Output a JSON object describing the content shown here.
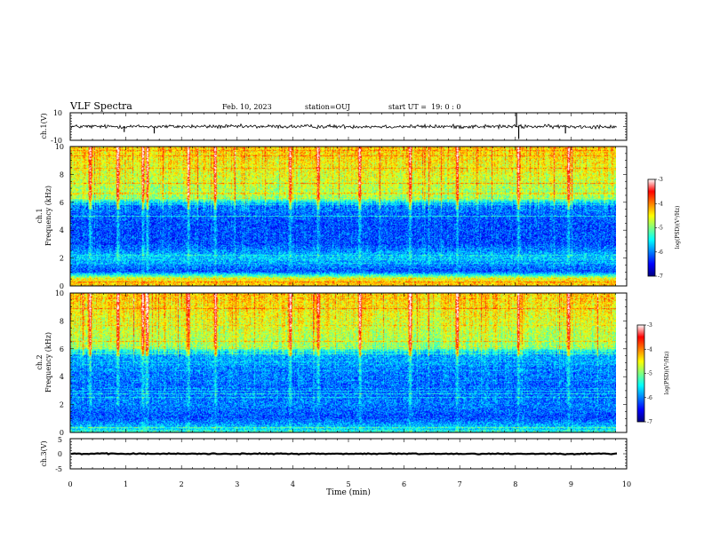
{
  "header": {
    "title": "VLF Spectra",
    "date": "Feb. 10, 2023",
    "station": "station=OUJ",
    "start": "start UT =  19: 0 : 0"
  },
  "chart_data": [
    {
      "id": "ch1-waveform",
      "type": "line",
      "ylabel": "ch.1(V)",
      "ylim": [
        -10,
        10
      ],
      "yticks": [
        "10",
        "-10"
      ],
      "xlim": [
        0,
        10
      ],
      "baseline": 0,
      "noise_amplitude": 1.2,
      "spikes": [
        {
          "t": 0.97,
          "v": -4
        },
        {
          "t": 1.51,
          "v": -5
        },
        {
          "t": 8.02,
          "v": 10
        },
        {
          "t": 8.06,
          "v": -9
        },
        {
          "t": 8.9,
          "v": -5
        }
      ]
    },
    {
      "id": "ch1-spectrogram",
      "type": "heatmap",
      "ylabel": "ch.1\nFrequency (kHz)",
      "ylabel_lines": [
        "ch.1",
        "Frequency (kHz)"
      ],
      "ylim": [
        0,
        10
      ],
      "yticks": [
        "0",
        "2",
        "4",
        "6",
        "8",
        "10"
      ],
      "xlim": [
        0,
        10
      ],
      "data_extent_min": 9.83,
      "colorbar": {
        "label": "log(PSD)(V²/Hz)",
        "range": [
          -7,
          -3
        ],
        "ticks": [
          "-3",
          "-4",
          "-5",
          "-6",
          "-7"
        ],
        "colormap": [
          "#000080",
          "#0000ff",
          "#0080ff",
          "#00ffff",
          "#80ff80",
          "#ffff00",
          "#ff8000",
          "#ff0000",
          "#ffffff"
        ]
      },
      "profile_kHz_log": [
        [
          0.2,
          -4.3
        ],
        [
          0.5,
          -4.6
        ],
        [
          1.0,
          -6.2
        ],
        [
          2.0,
          -5.7
        ],
        [
          3.0,
          -6.2
        ],
        [
          4.5,
          -6.2
        ],
        [
          5.8,
          -6.0
        ],
        [
          6.3,
          -4.9
        ],
        [
          8.0,
          -4.6
        ],
        [
          10.0,
          -4.3
        ]
      ],
      "sferics_min": [
        0.35,
        0.85,
        1.3,
        1.38,
        2.12,
        2.6,
        3.95,
        4.45,
        5.2,
        6.1,
        6.95,
        8.05,
        8.95
      ]
    },
    {
      "id": "ch2-spectrogram",
      "type": "heatmap",
      "ylabel": "ch.2\nFrequency (kHz)",
      "ylabel_lines": [
        "ch.2",
        "Frequency (kHz)"
      ],
      "ylim": [
        0,
        10
      ],
      "yticks": [
        "0",
        "2",
        "4",
        "6",
        "8",
        "10"
      ],
      "xlim": [
        0,
        10
      ],
      "data_extent_min": 9.83,
      "colorbar": {
        "label": "log(PSD)(V²/Hz)",
        "range": [
          -7,
          -3
        ],
        "ticks": [
          "-3",
          "-4",
          "-5",
          "-6",
          "-7"
        ],
        "colormap": [
          "#000080",
          "#0000ff",
          "#0080ff",
          "#00ffff",
          "#80ff80",
          "#ffff00",
          "#ff8000",
          "#ff0000",
          "#ffffff"
        ]
      },
      "profile_kHz_log": [
        [
          0.2,
          -5.6
        ],
        [
          1.0,
          -6.2
        ],
        [
          2.0,
          -6.0
        ],
        [
          3.0,
          -6.1
        ],
        [
          4.5,
          -6.0
        ],
        [
          5.6,
          -5.8
        ],
        [
          6.2,
          -4.9
        ],
        [
          8.0,
          -4.6
        ],
        [
          10.0,
          -4.3
        ]
      ],
      "sferics_min": [
        0.35,
        0.85,
        1.3,
        1.38,
        2.12,
        2.6,
        3.95,
        4.45,
        5.2,
        6.1,
        6.95,
        8.05,
        8.95
      ]
    },
    {
      "id": "ch3-waveform",
      "type": "line",
      "ylabel": "ch.3(V)",
      "ylim": [
        -5,
        5
      ],
      "yticks": [
        "5",
        "0",
        "-5"
      ],
      "xlim": [
        0,
        10
      ],
      "xlabel": "Time (min)",
      "xticks": [
        "0",
        "1",
        "2",
        "3",
        "4",
        "5",
        "6",
        "7",
        "8",
        "9",
        "10"
      ],
      "baseline": 0,
      "noise_amplitude": 0.5
    }
  ]
}
